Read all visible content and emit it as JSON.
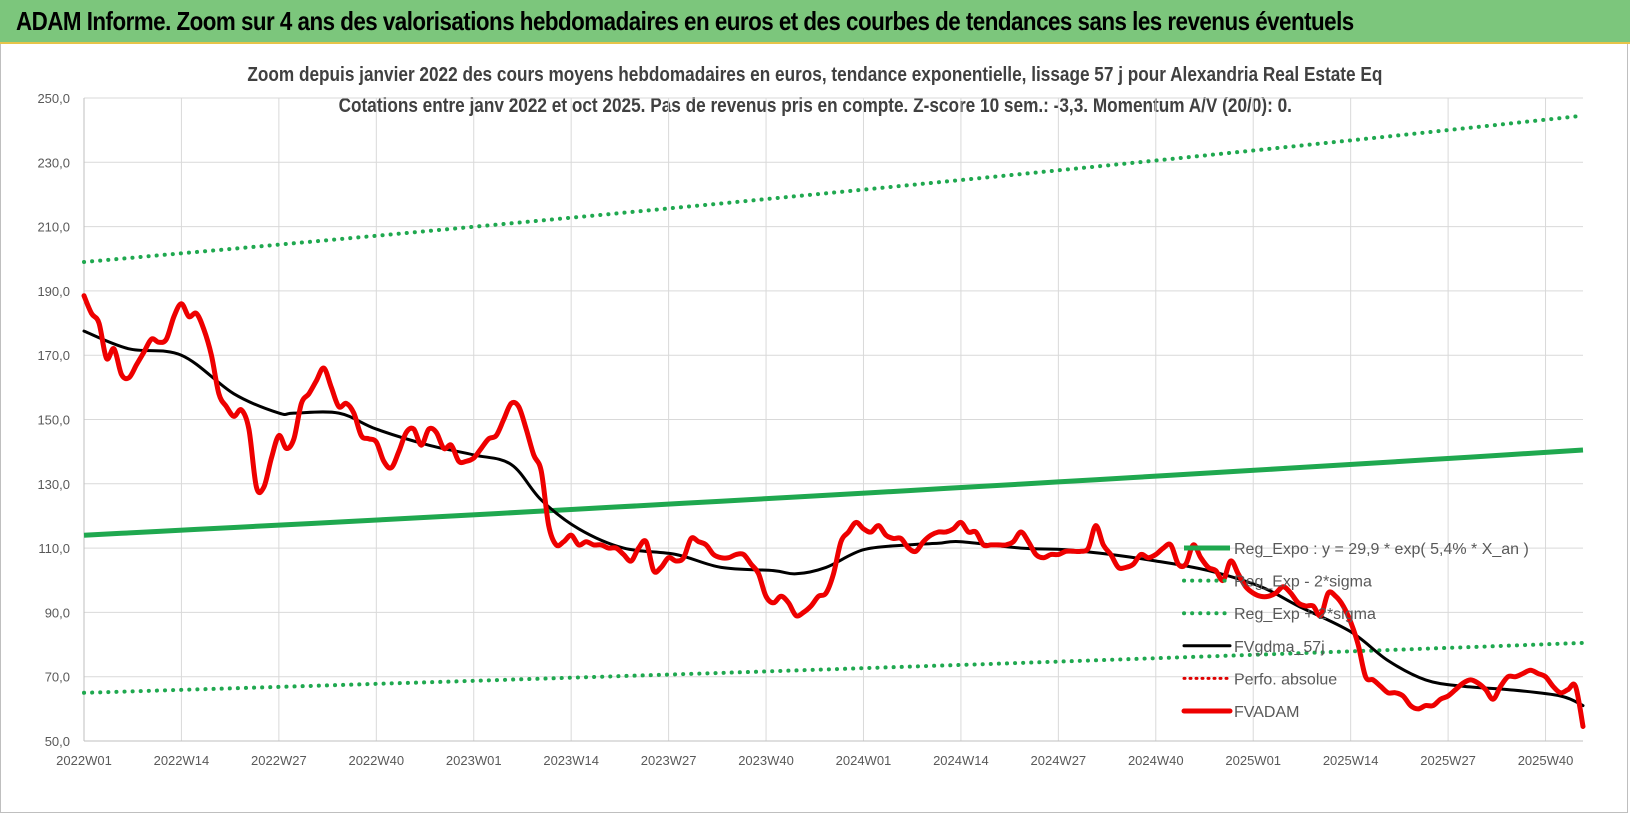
{
  "banner": {
    "title": "ADAM Informe. Zoom sur 4 ans des valorisations hebdomadaires en euros et des courbes de tendances sans les revenus éventuels"
  },
  "chart_data": {
    "type": "line",
    "title": "Zoom depuis janvier 2022 des cours moyens hebdomadaires en euros, tendance exponentielle, lissage 57 j pour Alexandria Real Estate Eq",
    "subtitle": "Cotations entre janv 2022 et oct 2025. Pas de revenus pris en compte. Z-score 10 sem.: -3,3. Momentum A/V (20/0): 0.",
    "xlabel": "",
    "ylabel": "",
    "ylim": [
      50,
      250
    ],
    "y_ticks": [
      "250,0",
      "230,0",
      "210,0",
      "190,0",
      "170,0",
      "150,0",
      "130,0",
      "110,0",
      "90,0",
      "70,0",
      "50,0"
    ],
    "x_ticks": [
      "2022W01",
      "2022W14",
      "2022W27",
      "2022W40",
      "2023W01",
      "2023W14",
      "2023W27",
      "2023W40",
      "2024W01",
      "2024W14",
      "2024W27",
      "2024W40",
      "2025W01",
      "2025W14",
      "2025W27",
      "2025W40"
    ],
    "x_range_weeks": [
      0,
      200
    ],
    "grid": true,
    "legend": {
      "position": "right",
      "entries": [
        "Reg_Expo : y = 29,9 * exp( 5,4% * X_an )",
        "Reg_Exp - 2*sigma",
        "Reg_Exp + 2*sigma",
        "FVgdma_57j",
        "Perfo. absolue",
        "FVADAM"
      ]
    },
    "colors": {
      "regression": "#1fa84f",
      "sigma_bands": "#1fa84f",
      "fvgdma": "#000000",
      "perfo": "#e00000",
      "fvadam": "#ee0000",
      "grid": "#d9d9d9",
      "banner": "#7cc67c"
    },
    "series": [
      {
        "name": "Reg_Expo : y = 29,9 * exp( 5,4% * X_an )",
        "style": "solid-thick",
        "x": [
          0,
          200
        ],
        "values": [
          114,
          140.5
        ]
      },
      {
        "name": "Reg_Exp - 2*sigma",
        "style": "dotted",
        "x": [
          0,
          200
        ],
        "values": [
          65,
          80.5
        ]
      },
      {
        "name": "Reg_Exp + 2*sigma",
        "style": "dotted",
        "x": [
          0,
          200
        ],
        "values": [
          199,
          244.5
        ]
      },
      {
        "name": "FVgdma_57j",
        "style": "solid",
        "x": [
          0,
          6,
          13,
          20,
          26,
          28,
          34,
          39,
          46,
          52,
          57,
          61,
          66,
          72,
          79,
          85,
          92,
          95,
          99,
          104,
          110,
          114,
          117,
          125,
          131,
          137,
          143,
          150,
          157,
          162,
          169,
          174,
          179,
          184,
          190,
          197,
          200
        ],
        "values": [
          177.5,
          172,
          170,
          158,
          152,
          152,
          152,
          147,
          142,
          139,
          136,
          125,
          116,
          110,
          108,
          104,
          103,
          102,
          104,
          109.5,
          111,
          111.5,
          112,
          110,
          109.5,
          108,
          106,
          103,
          98,
          92,
          84,
          75,
          69,
          67,
          66,
          64,
          61
        ]
      },
      {
        "name": "FVADAM",
        "style": "solid-thick",
        "x": [
          0,
          1,
          2,
          3,
          4,
          5,
          6,
          7,
          8,
          9,
          10,
          11,
          12,
          13,
          14,
          15,
          16,
          17,
          18,
          19,
          20,
          21,
          22,
          23,
          24,
          25,
          26,
          27,
          28,
          29,
          30,
          31,
          32,
          33,
          34,
          35,
          36,
          37,
          38,
          39,
          40,
          41,
          42,
          43,
          44,
          45,
          46,
          47,
          48,
          49,
          50,
          51,
          52,
          53,
          54,
          55,
          56,
          57,
          58,
          59,
          60,
          61,
          62,
          63,
          64,
          65,
          66,
          67,
          68,
          69,
          70,
          71,
          72,
          73,
          74,
          75,
          76,
          77,
          78,
          79,
          80,
          81,
          82,
          83,
          84,
          85,
          86,
          87,
          88,
          89,
          90,
          91,
          92,
          93,
          94,
          95,
          96,
          97,
          98,
          99,
          100,
          101,
          102,
          103,
          104,
          105,
          106,
          107,
          108,
          109,
          110,
          111,
          112,
          113,
          114,
          115,
          116,
          117,
          118,
          119,
          120,
          121,
          122,
          123,
          124,
          125,
          126,
          127,
          128,
          129,
          130,
          131,
          132,
          133,
          134,
          135,
          136,
          137,
          138,
          139,
          140,
          141,
          142,
          143,
          144,
          145,
          146,
          147,
          148,
          149,
          150,
          151,
          152,
          153,
          154,
          155,
          156,
          157,
          158,
          159,
          160,
          161,
          162,
          163,
          164,
          165,
          166,
          167,
          168,
          169,
          170,
          171,
          172,
          173,
          174,
          175,
          176,
          177,
          178,
          179,
          180,
          181,
          182,
          183,
          184,
          185,
          186,
          187,
          188,
          189,
          190,
          191,
          192,
          193,
          194,
          195,
          196,
          197,
          198,
          199,
          200
        ],
        "values": [
          188.5,
          183,
          180,
          169,
          172,
          164,
          163,
          167,
          171,
          175,
          174,
          175,
          182,
          186,
          182,
          183,
          178,
          170,
          158,
          154,
          151,
          153,
          147,
          129,
          129,
          138,
          145,
          141,
          144,
          155,
          158,
          162,
          166,
          160,
          154,
          155,
          152,
          145,
          144,
          143,
          137,
          135,
          140,
          146,
          147,
          142,
          147,
          146,
          141,
          142,
          137,
          137,
          138,
          141,
          144,
          145,
          150,
          155,
          154,
          147,
          139,
          134,
          117,
          111,
          112,
          114,
          111,
          112,
          111,
          111,
          110,
          110,
          108,
          106,
          110,
          112,
          103,
          104,
          107,
          106,
          107,
          113,
          112,
          111,
          108,
          107,
          107,
          108,
          108,
          105,
          102,
          95,
          93,
          95,
          93,
          89,
          90,
          92,
          95,
          96,
          102,
          112,
          115,
          118,
          116,
          115,
          117,
          114,
          113,
          113,
          110,
          109,
          112,
          114,
          115,
          115,
          116,
          118,
          115,
          115,
          111,
          111,
          111,
          111,
          112,
          115,
          112,
          108,
          107,
          108,
          108,
          109,
          109,
          109,
          110,
          117,
          111,
          108,
          104,
          104,
          105,
          108,
          107,
          108,
          110,
          111,
          105,
          105,
          111,
          107,
          104,
          103,
          100,
          106,
          102,
          98,
          96,
          95,
          95,
          96,
          98,
          96,
          93,
          92,
          92,
          89,
          96,
          95,
          92,
          87,
          80,
          70,
          69,
          67,
          65,
          65,
          64,
          61,
          60,
          61,
          61,
          63,
          64,
          66,
          68,
          69,
          68,
          66,
          63,
          67,
          70,
          70,
          71,
          72,
          71,
          70,
          67,
          65,
          66,
          67,
          54.5
        ]
      }
    ]
  }
}
